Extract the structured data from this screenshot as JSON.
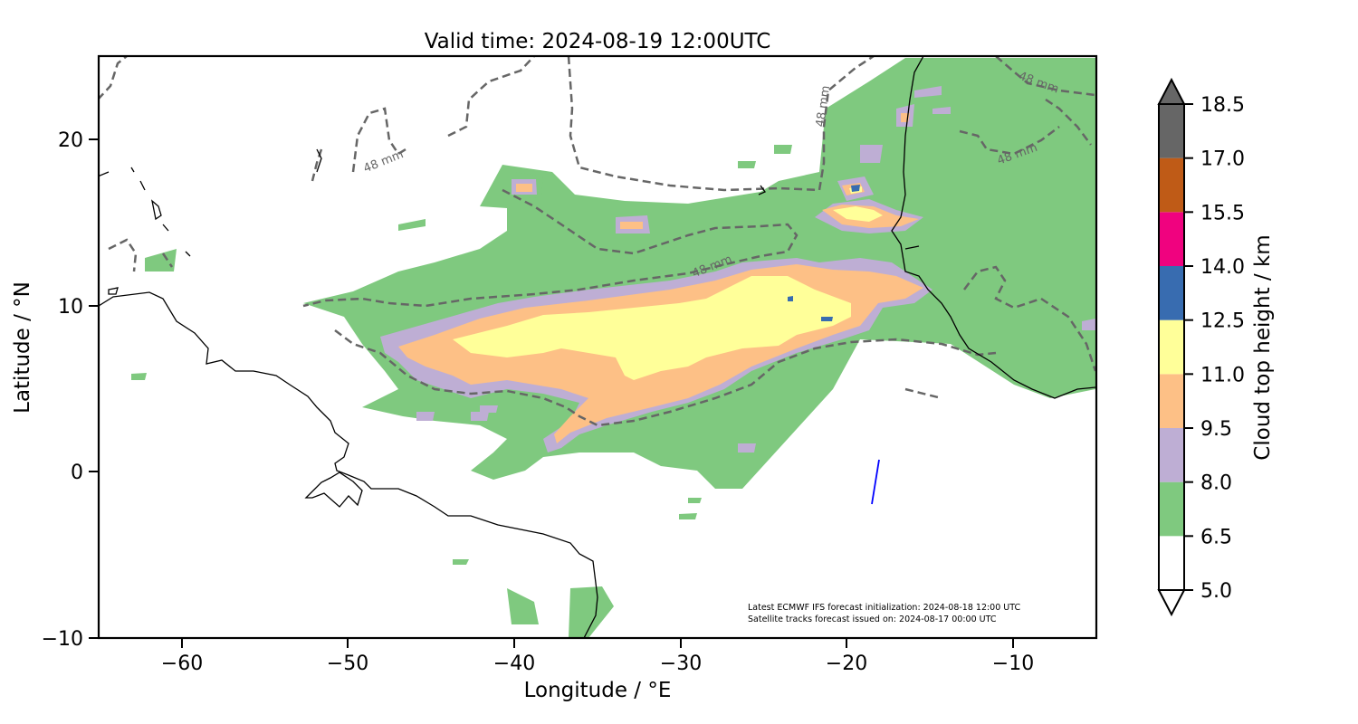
{
  "title": "Valid time: 2024-08-19 12:00UTC",
  "xlabel": "Longitude / °E",
  "ylabel": "Latitude / °N",
  "colorbar_label": "Cloud top height / km",
  "xticks": [
    -60,
    -50,
    -40,
    -30,
    -20,
    -10
  ],
  "yticks": [
    20,
    10,
    0,
    -10
  ],
  "xtick_labels": [
    "−60",
    "−50",
    "−40",
    "−30",
    "−20",
    "−10"
  ],
  "ytick_labels": [
    "20",
    "10",
    "0",
    "−10"
  ],
  "extent": {
    "lon": [
      -65,
      -5
    ],
    "lat": [
      -10,
      25
    ]
  },
  "contour_labels": [
    "48 mm",
    "48 mm",
    "48 mm",
    "48 mm",
    "48 mm",
    "48 mm"
  ],
  "notes": {
    "line1": "Latest ECMWF IFS forecast initialization: 2024-08-18 12:00 UTC",
    "line2": "Satellite tracks forecast issued on: 2024-08-17 00:00 UTC"
  },
  "colorbar": {
    "levels": [
      5.0,
      6.5,
      8.0,
      9.5,
      11.0,
      12.5,
      14.0,
      15.5,
      17.0,
      18.5
    ],
    "level_labels": [
      "5.0",
      "6.5",
      "8.0",
      "9.5",
      "11.0",
      "12.5",
      "14.0",
      "15.5",
      "17.0",
      "18.5"
    ],
    "colors": [
      "#ffffff",
      "#7fc97f",
      "#beaed4",
      "#fdc086",
      "#ffff99",
      "#386cb0",
      "#f0027f",
      "#bf5b17",
      "#666666"
    ],
    "extend": "both",
    "under_color": "#ffffff",
    "over_color": "#666666"
  },
  "chart_data": {
    "type": "heatmap",
    "title": "Valid time: 2024-08-19 12:00UTC",
    "xlabel": "Longitude / °E",
    "ylabel": "Latitude / °N",
    "xlim": [
      -65,
      -5
    ],
    "ylim": [
      -10,
      25
    ],
    "variable": "Cloud top height / km",
    "contour_field": "48 mm",
    "satellite_track": {
      "lon": [
        -18.5,
        -18.1
      ],
      "lat": [
        -2.0,
        0.7
      ],
      "color": "#0000ff"
    }
  }
}
